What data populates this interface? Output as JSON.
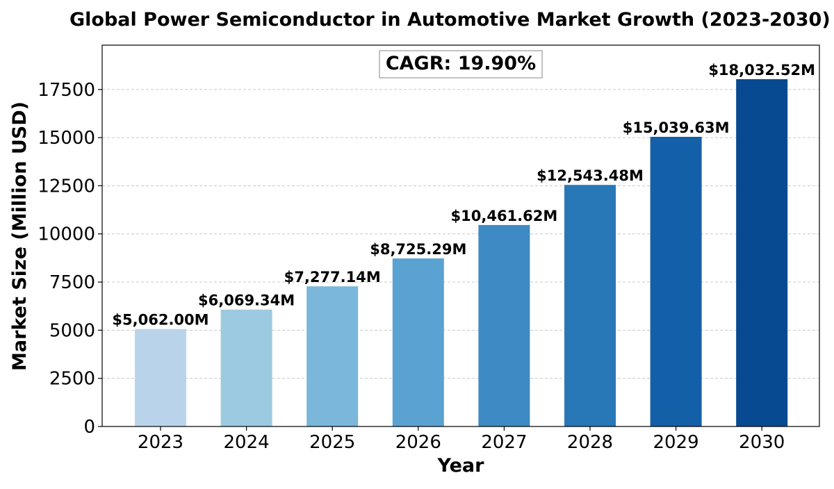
{
  "chart_data": {
    "type": "bar",
    "title": "Global Power Semiconductor in Automotive Market Growth (2023-2030)",
    "xlabel": "Year",
    "ylabel": "Market Size (Million USD)",
    "categories": [
      "2023",
      "2024",
      "2025",
      "2026",
      "2027",
      "2028",
      "2029",
      "2030"
    ],
    "values": [
      5062.0,
      6069.34,
      7277.14,
      8725.29,
      10461.62,
      12543.48,
      15039.63,
      18032.52
    ],
    "data_labels": [
      "$5,062.00M",
      "$6,069.34M",
      "$7,277.14M",
      "$8,725.29M",
      "$10,461.62M",
      "$12,543.48M",
      "$15,039.63M",
      "$18,032.52M"
    ],
    "colors": [
      "#b9d4ea",
      "#9ccae0",
      "#7ab7da",
      "#5aa2d1",
      "#3e8ac4",
      "#2878b8",
      "#135fa8",
      "#084a92"
    ],
    "ylim": [
      0,
      19800
    ],
    "yticks": [
      0,
      2500,
      5000,
      7500,
      10000,
      12500,
      15000,
      17500
    ],
    "ytick_labels": [
      "0",
      "2500",
      "5000",
      "7500",
      "10000",
      "12500",
      "15000",
      "17500"
    ],
    "grid": "y-dashed",
    "annotation": "CAGR: 19.90%"
  }
}
